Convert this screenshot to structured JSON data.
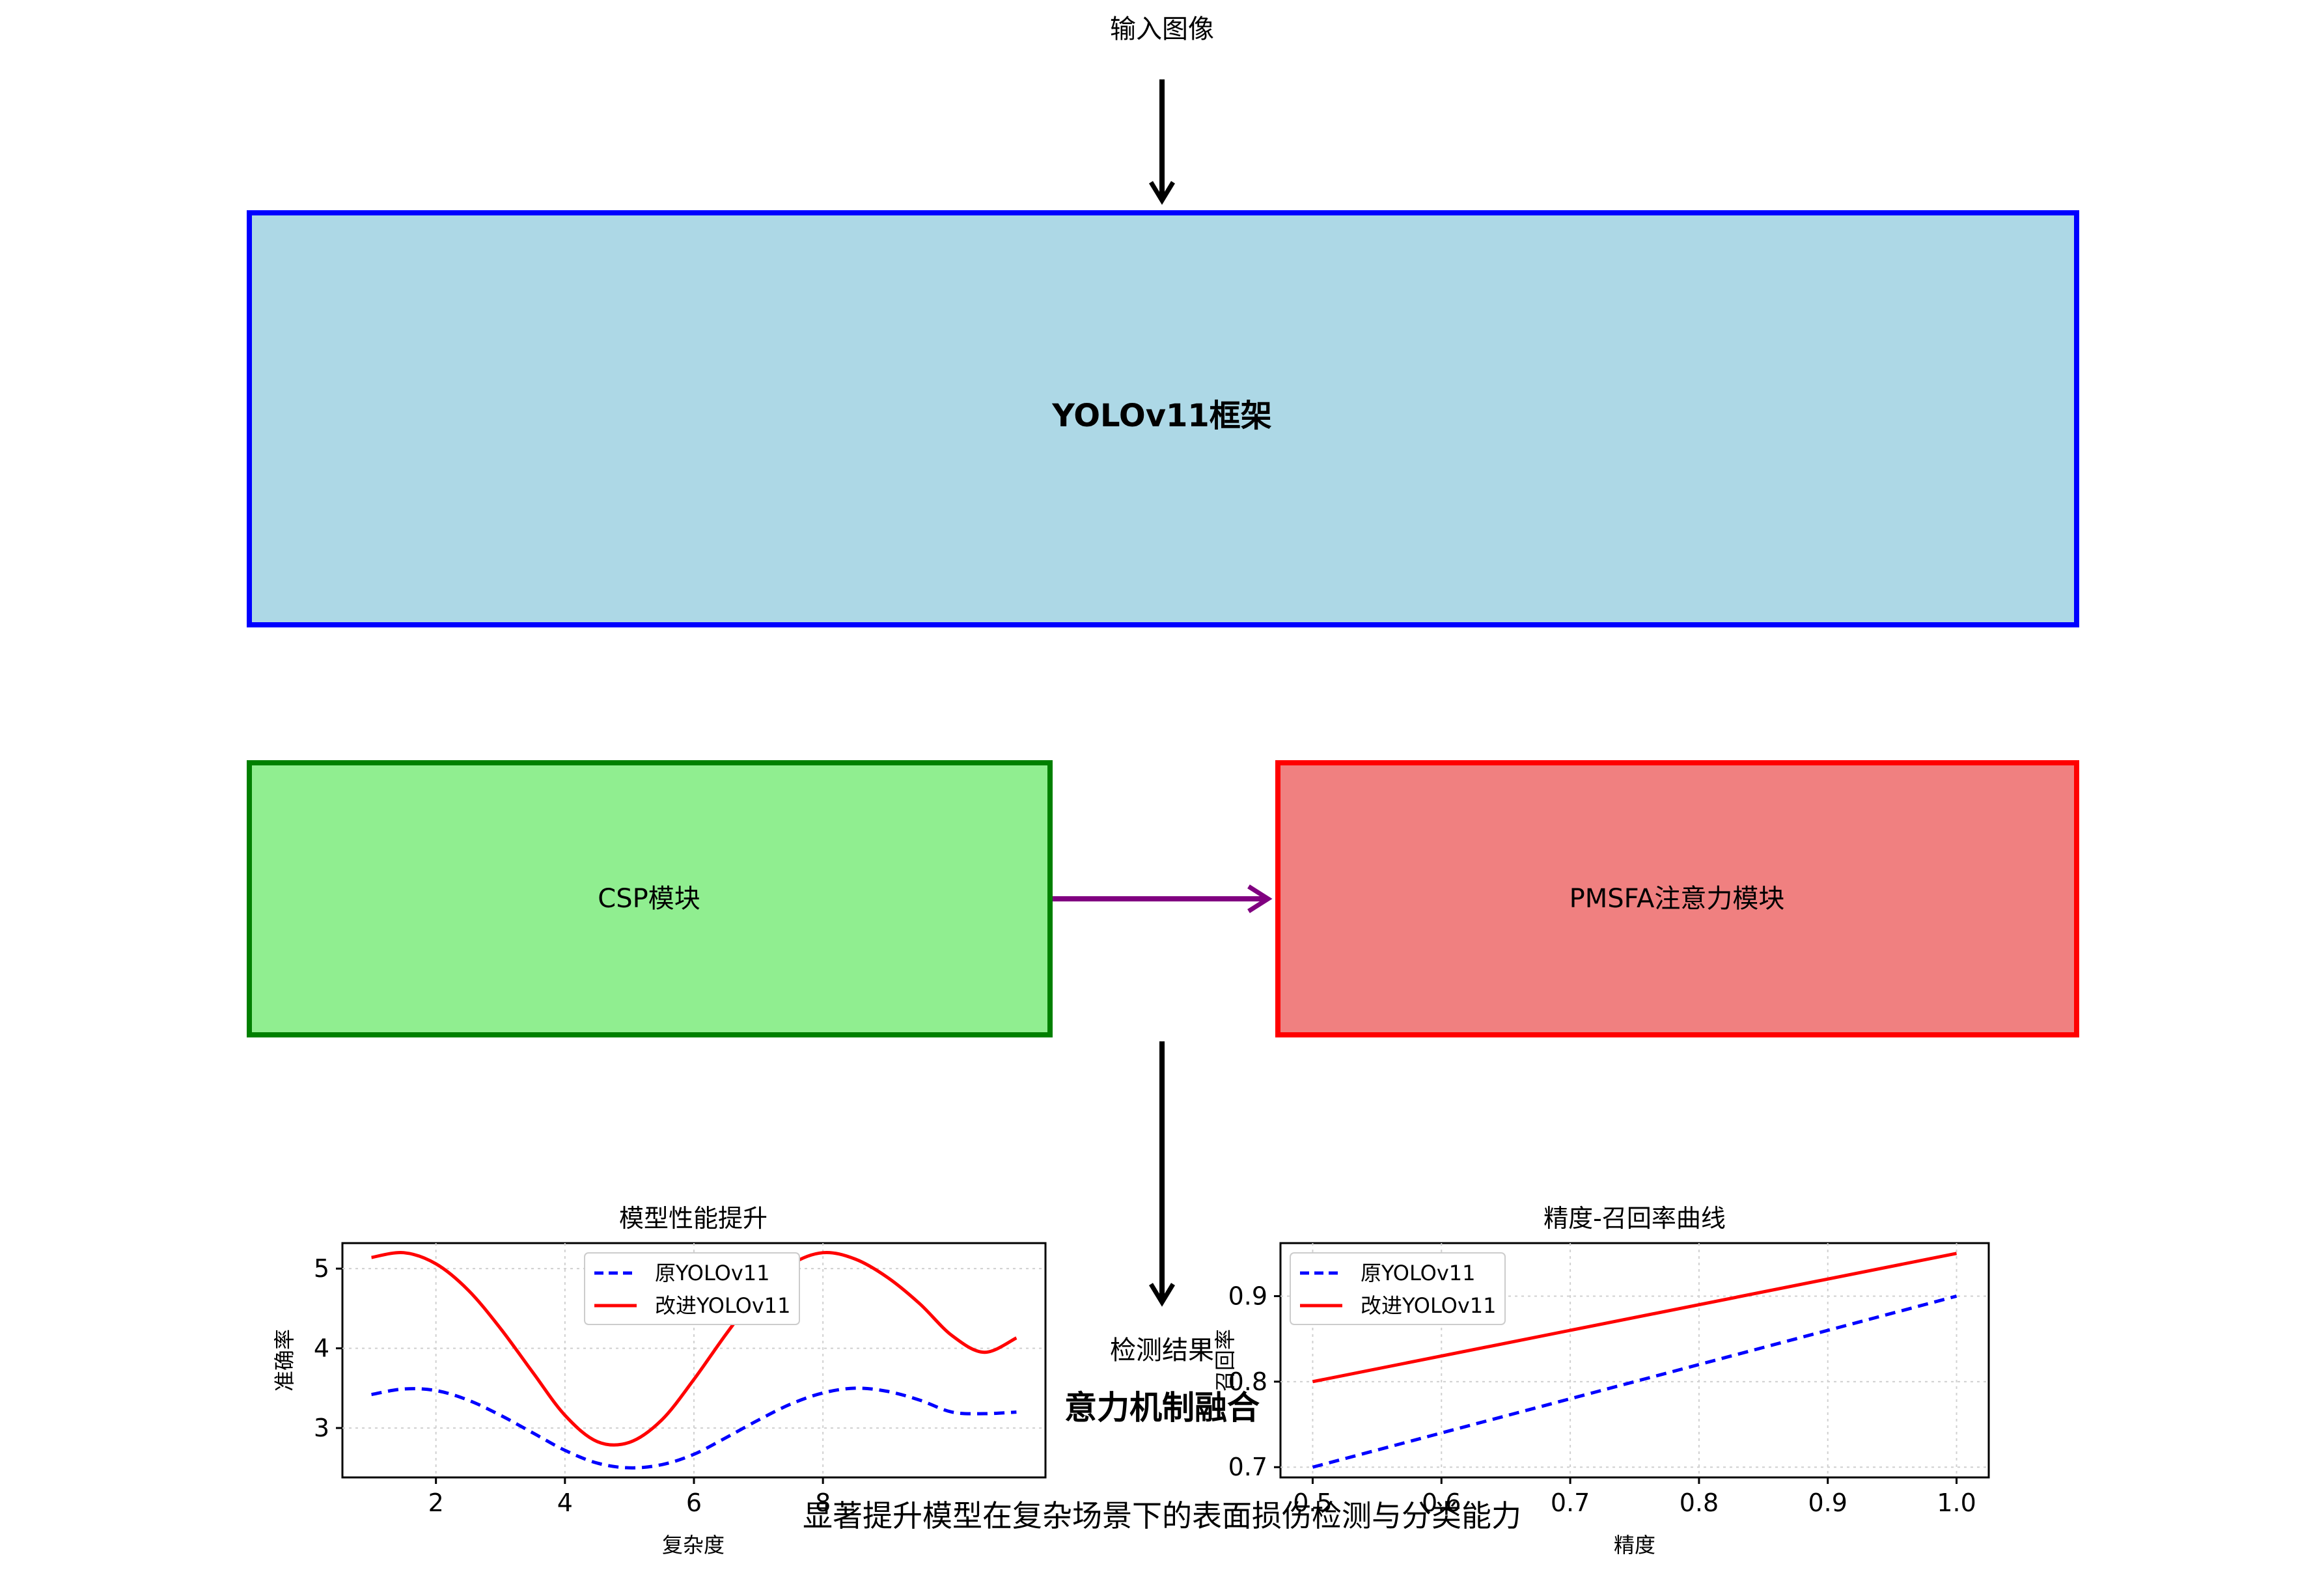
{
  "flow": {
    "input_label": "输入图像",
    "framework_label": "YOLOv11框架",
    "csp_label": "CSP模块",
    "pmsfa_label": "PMSFA注意力模块",
    "output_label": "检测结果",
    "overlay_title": "意力机制融合",
    "overlay_caption": "显著提升模型在复杂场景下的表面损伤检测与分类能力"
  },
  "colors": {
    "framework_fill": "#add8e6",
    "framework_border": "#0000ff",
    "csp_fill": "#90ee90",
    "csp_border": "#008000",
    "pmsfa_fill": "#f08080",
    "pmsfa_border": "#ff0000",
    "connector": "#800080",
    "arrow": "#000000",
    "series_original": "#0000ff",
    "series_improved": "#ff0000"
  },
  "chart_data": [
    {
      "type": "line",
      "title": "模型性能提升",
      "xlabel": "复杂度",
      "ylabel": "准确率",
      "xlim": [
        0.55,
        11.45
      ],
      "ylim": [
        2.38,
        5.32
      ],
      "xticks": [
        2,
        4,
        6,
        8
      ],
      "yticks": [
        3,
        4,
        5
      ],
      "grid": true,
      "legend": "top-center",
      "series": [
        {
          "name": "原YOLOv11",
          "style": "dashed",
          "color": "#0000ff",
          "x": [
            1.0,
            1.5,
            2.0,
            2.5,
            3.0,
            3.5,
            4.0,
            4.5,
            5.0,
            5.5,
            6.0,
            6.5,
            7.0,
            7.5,
            8.0,
            8.5,
            9.0,
            9.5,
            10.0,
            10.5,
            11.0
          ],
          "y": [
            3.42,
            3.49,
            3.47,
            3.35,
            3.16,
            2.94,
            2.72,
            2.56,
            2.5,
            2.54,
            2.67,
            2.88,
            3.1,
            3.3,
            3.44,
            3.5,
            3.46,
            3.35,
            3.2,
            3.18,
            3.2
          ]
        },
        {
          "name": "改进YOLOv11",
          "style": "solid",
          "color": "#ff0000",
          "x": [
            1.0,
            1.5,
            2.0,
            2.5,
            3.0,
            3.5,
            4.0,
            4.5,
            5.0,
            5.5,
            6.0,
            6.5,
            7.0,
            7.5,
            8.0,
            8.5,
            9.0,
            9.5,
            10.0,
            10.5,
            11.0
          ],
          "y": [
            5.14,
            5.2,
            5.06,
            4.73,
            4.25,
            3.7,
            3.16,
            2.83,
            2.82,
            3.1,
            3.61,
            4.18,
            4.7,
            5.05,
            5.2,
            5.12,
            4.89,
            4.56,
            4.16,
            3.95,
            4.13
          ]
        }
      ]
    },
    {
      "type": "line",
      "title": "精度-召回率曲线",
      "xlabel": "精度",
      "ylabel": "召回率",
      "xlim": [
        0.475,
        1.025
      ],
      "ylim": [
        0.688,
        0.962
      ],
      "xticks": [
        0.5,
        0.6,
        0.7,
        0.8,
        0.9,
        1.0
      ],
      "yticks": [
        0.7,
        0.8,
        0.9
      ],
      "grid": true,
      "legend": "top-left",
      "series": [
        {
          "name": "原YOLOv11",
          "style": "dashed",
          "color": "#0000ff",
          "x": [
            0.5,
            1.0
          ],
          "y": [
            0.7,
            0.9
          ]
        },
        {
          "name": "改进YOLOv11",
          "style": "solid",
          "color": "#ff0000",
          "x": [
            0.5,
            1.0
          ],
          "y": [
            0.8,
            0.95
          ]
        }
      ]
    }
  ]
}
